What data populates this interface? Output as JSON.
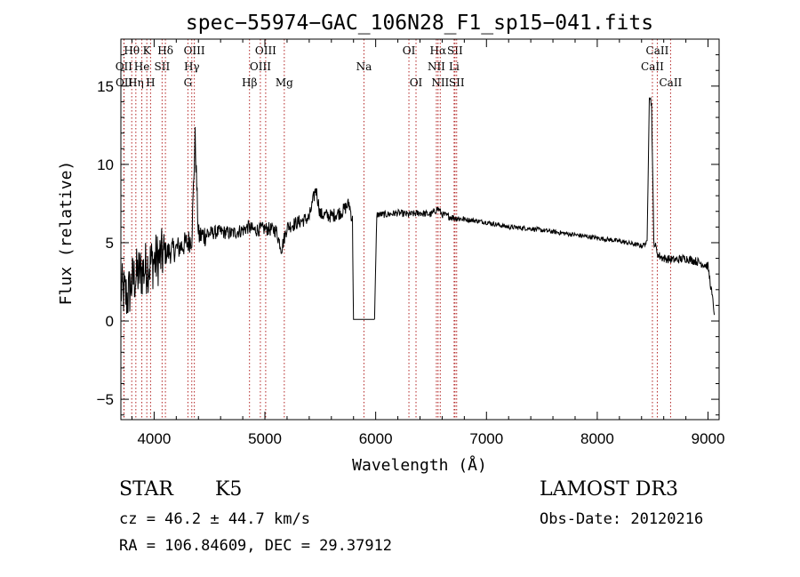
{
  "chart_data": {
    "type": "line",
    "title": "spec−55974−GAC_106N28_F1_sp15−041.fits",
    "xlabel": "Wavelength (Å)",
    "ylabel": "Flux (relative)",
    "xlim": [
      3700,
      9100
    ],
    "ylim": [
      -6.3,
      18.0
    ],
    "xticks": [
      4000,
      5000,
      6000,
      7000,
      8000,
      9000
    ],
    "xtick_labels": [
      "4000",
      "5000",
      "6000",
      "7000",
      "8000",
      "9000"
    ],
    "yticks": [
      -5,
      0,
      5,
      10,
      15
    ],
    "ytick_labels": [
      "−5",
      "0",
      "5",
      "10",
      "15"
    ],
    "grid": false,
    "series": [
      {
        "name": "flux",
        "x": [
          3700,
          3760,
          3800,
          3850,
          3900,
          3950,
          4000,
          4100,
          4200,
          4300,
          4340,
          4370,
          4400,
          4500,
          4600,
          4700,
          4800,
          4850,
          4900,
          5000,
          5100,
          5150,
          5200,
          5300,
          5400,
          5460,
          5500,
          5600,
          5700,
          5760,
          5790,
          5800,
          5990,
          6010,
          6100,
          6200,
          6300,
          6400,
          6500,
          6563,
          6600,
          6700,
          6800,
          6900,
          7000,
          7200,
          7400,
          7600,
          7800,
          8000,
          8200,
          8400,
          8450,
          8470,
          8490,
          8510,
          8550,
          8600,
          8700,
          8800,
          8900,
          9000,
          9060
        ],
        "y": [
          2.0,
          1.5,
          2.5,
          3.0,
          3.2,
          3.6,
          3.8,
          4.3,
          4.6,
          5.0,
          5.3,
          11.7,
          5.4,
          5.6,
          5.7,
          5.6,
          5.8,
          6.0,
          5.8,
          5.9,
          5.8,
          4.6,
          6.0,
          6.3,
          6.6,
          8.5,
          6.8,
          6.7,
          7.0,
          7.5,
          6.4,
          0.1,
          0.1,
          6.8,
          6.8,
          6.9,
          6.8,
          6.9,
          6.8,
          7.2,
          6.8,
          6.6,
          6.5,
          6.4,
          6.3,
          6.0,
          5.9,
          5.7,
          5.5,
          5.3,
          5.1,
          4.8,
          5.0,
          14.5,
          13.8,
          5.1,
          4.2,
          4.0,
          3.9,
          4.0,
          3.8,
          3.5,
          0.4
        ]
      }
    ],
    "line_markers": [
      {
        "label": "Hθ",
        "x": 3798,
        "row": 0
      },
      {
        "label": "OII",
        "x": 3727,
        "row": 1
      },
      {
        "label": "OII",
        "x": 3729,
        "row": 2
      },
      {
        "label": "Hη",
        "x": 3835,
        "row": 2
      },
      {
        "label": "K",
        "x": 3934,
        "row": 0
      },
      {
        "label": "He",
        "x": 3889,
        "row": 1
      },
      {
        "label": "H",
        "x": 3968,
        "row": 2
      },
      {
        "label": "SII",
        "x": 4072,
        "row": 1
      },
      {
        "label": "Hδ",
        "x": 4102,
        "row": 0
      },
      {
        "label": "OIII",
        "x": 4363,
        "row": 0
      },
      {
        "label": "Hγ",
        "x": 4340,
        "row": 1
      },
      {
        "label": "G",
        "x": 4305,
        "row": 2
      },
      {
        "label": "OIII",
        "x": 5007,
        "row": 0
      },
      {
        "label": "OIII",
        "x": 4959,
        "row": 1
      },
      {
        "label": "Hβ",
        "x": 4861,
        "row": 2
      },
      {
        "label": "Mg",
        "x": 5175,
        "row": 2
      },
      {
        "label": "Na",
        "x": 5894,
        "row": 1
      },
      {
        "label": "OI",
        "x": 6300,
        "row": 0
      },
      {
        "label": "OI",
        "x": 6364,
        "row": 2
      },
      {
        "label": "Hα",
        "x": 6563,
        "row": 0
      },
      {
        "label": "NII",
        "x": 6548,
        "row": 1
      },
      {
        "label": "NII",
        "x": 6583,
        "row": 2
      },
      {
        "label": "SII",
        "x": 6716,
        "row": 0
      },
      {
        "label": "Li",
        "x": 6708,
        "row": 1
      },
      {
        "label": "SII",
        "x": 6731,
        "row": 2
      },
      {
        "label": "CaII",
        "x": 8542,
        "row": 0
      },
      {
        "label": "CaII",
        "x": 8498,
        "row": 1
      },
      {
        "label": "CaII",
        "x": 8662,
        "row": 2
      }
    ],
    "colors": {
      "line": "#000000",
      "marker": "#b22222"
    }
  },
  "info": {
    "object_class": "STAR",
    "subclass": "K5",
    "survey": "LAMOST DR3",
    "redshift": "cz = 46.2 ± 44.7 km/s",
    "obs_date": "Obs-Date: 20120216",
    "coords": "RA = 106.84609, DEC =  29.37912"
  }
}
